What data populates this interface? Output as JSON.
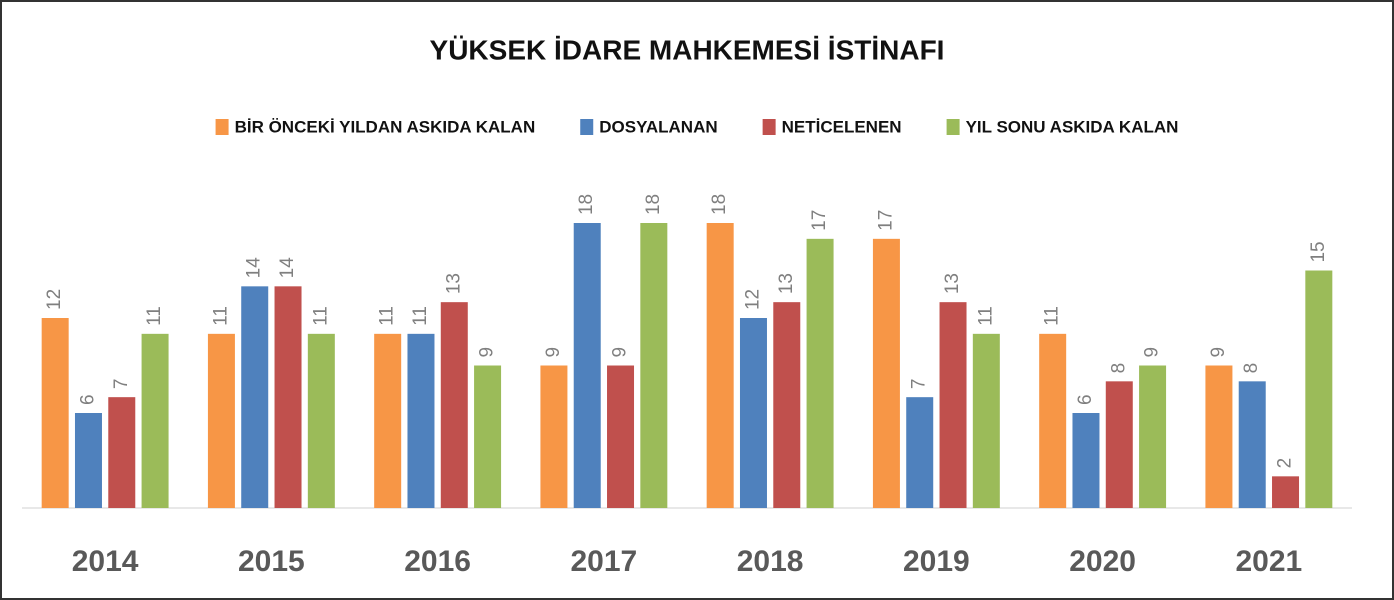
{
  "chart_data": {
    "type": "bar",
    "title": "YÜKSEK İDARE MAHKEMESİ İSTİNAFI",
    "categories": [
      "2014",
      "2015",
      "2016",
      "2017",
      "2018",
      "2019",
      "2020",
      "2021"
    ],
    "series": [
      {
        "name": "BİR ÖNCEKİ YILDAN ASKIDA KALAN",
        "color": "#f79646",
        "values": [
          12,
          11,
          11,
          9,
          18,
          17,
          11,
          9
        ]
      },
      {
        "name": "DOSYALANAN",
        "color": "#4f81bd",
        "values": [
          6,
          14,
          11,
          18,
          12,
          7,
          6,
          8
        ]
      },
      {
        "name": "NETİCELENEN",
        "color": "#c0504d",
        "values": [
          7,
          14,
          13,
          9,
          13,
          13,
          8,
          2
        ]
      },
      {
        "name": "YIL SONU ASKIDA KALAN",
        "color": "#9bbb59",
        "values": [
          11,
          11,
          9,
          18,
          17,
          11,
          9,
          15
        ]
      }
    ],
    "legend": "top"
  }
}
